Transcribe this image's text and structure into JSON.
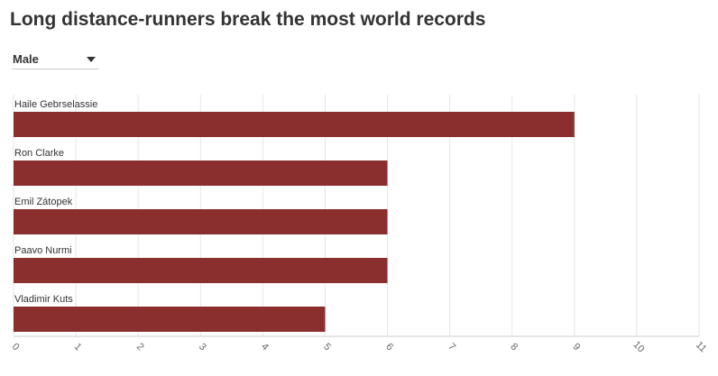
{
  "header": {
    "title": "Long distance-runners break the most world records"
  },
  "filter": {
    "selected": "Male",
    "icon": "caret-down-icon"
  },
  "colors": {
    "bar": "#8b2e2e",
    "grid": "#e6e6e6",
    "axis": "#cccccc"
  },
  "chart_data": {
    "type": "bar",
    "orientation": "horizontal",
    "title": "Long distance-runners break the most world records",
    "categories": [
      "Haile Gebrselassie",
      "Ron Clarke",
      "Emil Zátopek",
      "Paavo Nurmi",
      "Vladimir Kuts"
    ],
    "values": [
      9,
      6,
      6,
      6,
      5
    ],
    "xlim": [
      0,
      11
    ],
    "xticks": [
      0,
      1,
      2,
      3,
      4,
      5,
      6,
      7,
      8,
      9,
      10,
      11
    ],
    "xlabel": "",
    "ylabel": "",
    "grid": true,
    "legend": "none"
  }
}
